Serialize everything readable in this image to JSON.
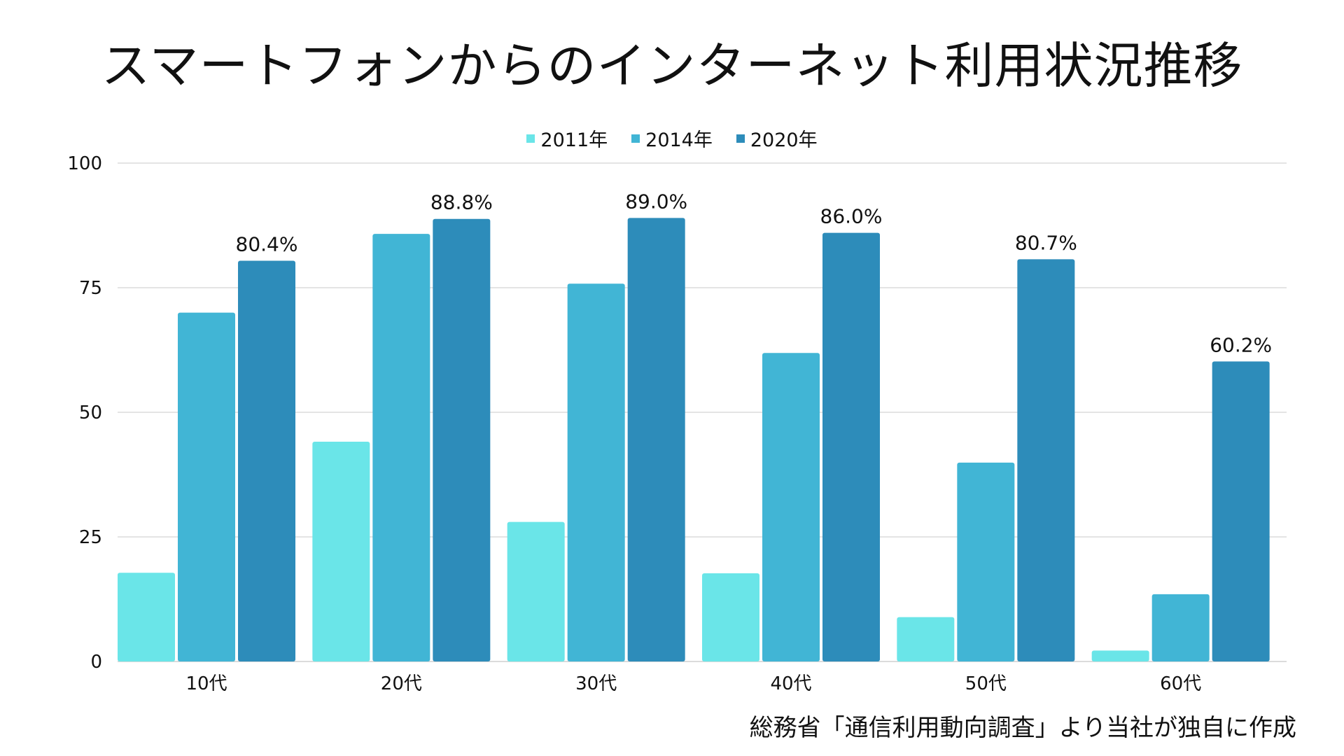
{
  "chart_data": {
    "type": "bar",
    "title": "スマートフォンからのインターネット利用状況推移",
    "categories": [
      "10代",
      "20代",
      "30代",
      "40代",
      "50代",
      "60代"
    ],
    "series": [
      {
        "name": "2011年",
        "color": "#6ae5e8",
        "values": [
          17.8,
          44.1,
          28.0,
          17.7,
          8.9,
          2.2
        ]
      },
      {
        "name": "2014年",
        "color": "#41b5d5",
        "values": [
          70.0,
          85.8,
          75.8,
          61.9,
          39.9,
          13.5
        ]
      },
      {
        "name": "2020年",
        "color": "#2d8cba",
        "values": [
          80.4,
          88.8,
          89.0,
          86.0,
          80.7,
          60.2
        ]
      }
    ],
    "data_labels": [
      "80.4%",
      "88.8%",
      "89.0%",
      "86.0%",
      "80.7%",
      "60.2%"
    ],
    "y_ticks": [
      0,
      25,
      50,
      75,
      100
    ],
    "ylim": [
      0,
      100
    ],
    "grid": true,
    "legend_position": "top-center",
    "source": "総務省「通信利用動向調査」より当社が独自に作成"
  }
}
